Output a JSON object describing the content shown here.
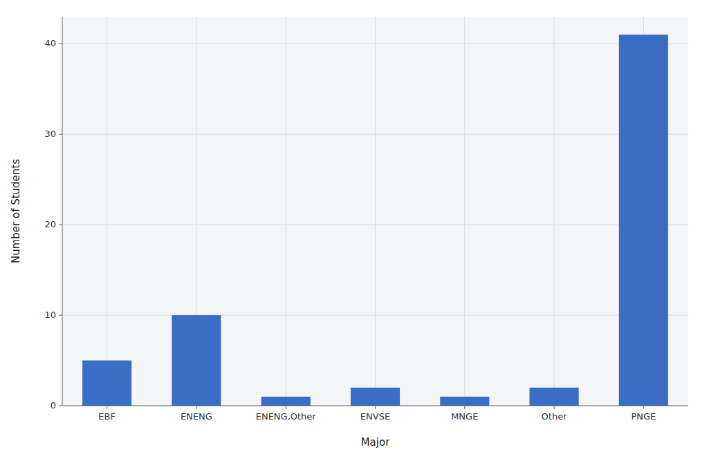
{
  "chart_data": {
    "type": "bar",
    "categories": [
      "EBF",
      "ENENG",
      "ENENG,Other",
      "ENVSE",
      "MNGE",
      "Other",
      "PNGE"
    ],
    "values": [
      5,
      10,
      1,
      2,
      1,
      2,
      41
    ],
    "color": "#3A6DC4",
    "xlabel": "Major",
    "ylabel": "Number of Students",
    "ylim": [
      0,
      43
    ],
    "yticks": [
      0,
      10,
      20,
      30,
      40
    ],
    "grid": true
  }
}
